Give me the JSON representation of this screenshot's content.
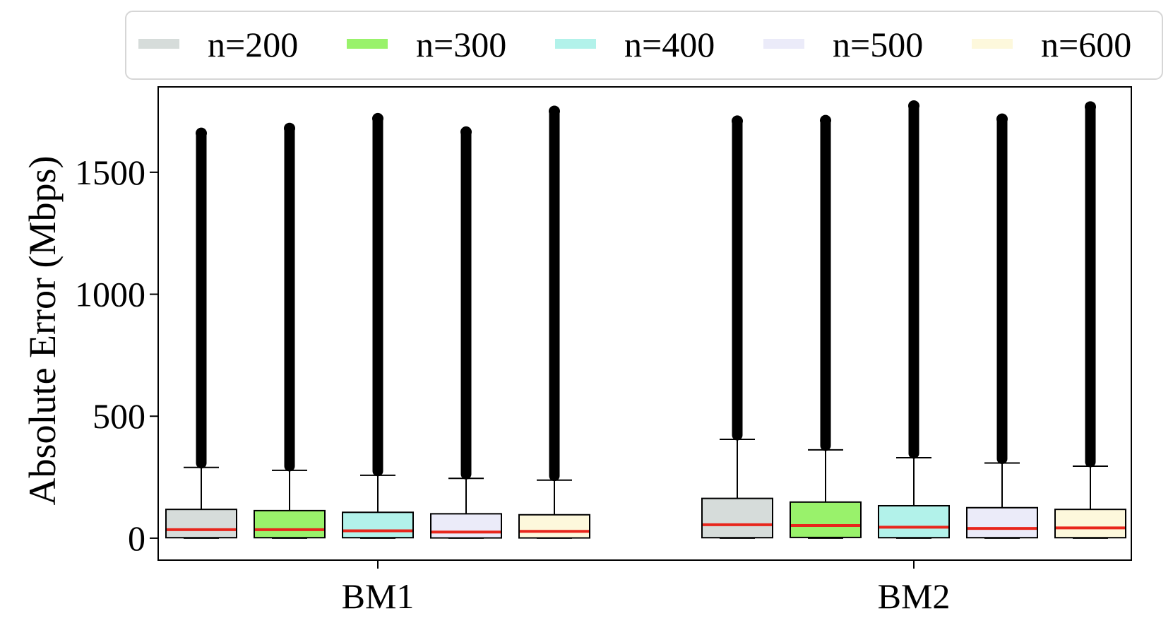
{
  "chart_data": {
    "type": "box",
    "title": "",
    "xlabel": "",
    "ylabel": "Absolute Error (Mbps)",
    "ylim": [
      -90,
      1850
    ],
    "yticks": [
      0,
      500,
      1000,
      1500
    ],
    "grid": false,
    "legend_position": "top",
    "categories": [
      "BM1",
      "BM2"
    ],
    "series": [
      {
        "name": "n=200",
        "color": "#d6dcda",
        "stats": [
          {
            "min": 0,
            "q1": 2,
            "median": 35,
            "q3": 118,
            "whisker_high": 290,
            "outlier_max": 1660
          },
          {
            "min": 0,
            "q1": 2,
            "median": 55,
            "q3": 163,
            "whisker_high": 405,
            "outlier_max": 1710
          }
        ]
      },
      {
        "name": "n=300",
        "color": "#99f26b",
        "stats": [
          {
            "min": 0,
            "q1": 2,
            "median": 35,
            "q3": 113,
            "whisker_high": 278,
            "outlier_max": 1680
          },
          {
            "min": 0,
            "q1": 3,
            "median": 52,
            "q3": 148,
            "whisker_high": 362,
            "outlier_max": 1712
          }
        ]
      },
      {
        "name": "n=400",
        "color": "#b2f2ea",
        "stats": [
          {
            "min": 0,
            "q1": 2,
            "median": 30,
            "q3": 106,
            "whisker_high": 258,
            "outlier_max": 1720
          },
          {
            "min": 0,
            "q1": 2,
            "median": 45,
            "q3": 133,
            "whisker_high": 330,
            "outlier_max": 1772
          }
        ]
      },
      {
        "name": "n=500",
        "color": "#ebebf9",
        "stats": [
          {
            "min": 0,
            "q1": 1,
            "median": 25,
            "q3": 100,
            "whisker_high": 245,
            "outlier_max": 1665
          },
          {
            "min": 0,
            "q1": 2,
            "median": 40,
            "q3": 125,
            "whisker_high": 308,
            "outlier_max": 1718
          }
        ]
      },
      {
        "name": "n=600",
        "color": "#fdf8dc",
        "stats": [
          {
            "min": 0,
            "q1": 1,
            "median": 28,
            "q3": 96,
            "whisker_high": 238,
            "outlier_max": 1750
          },
          {
            "min": 0,
            "q1": 2,
            "median": 42,
            "q3": 118,
            "whisker_high": 295,
            "outlier_max": 1768
          }
        ]
      }
    ],
    "median_color": "#e8261c"
  }
}
